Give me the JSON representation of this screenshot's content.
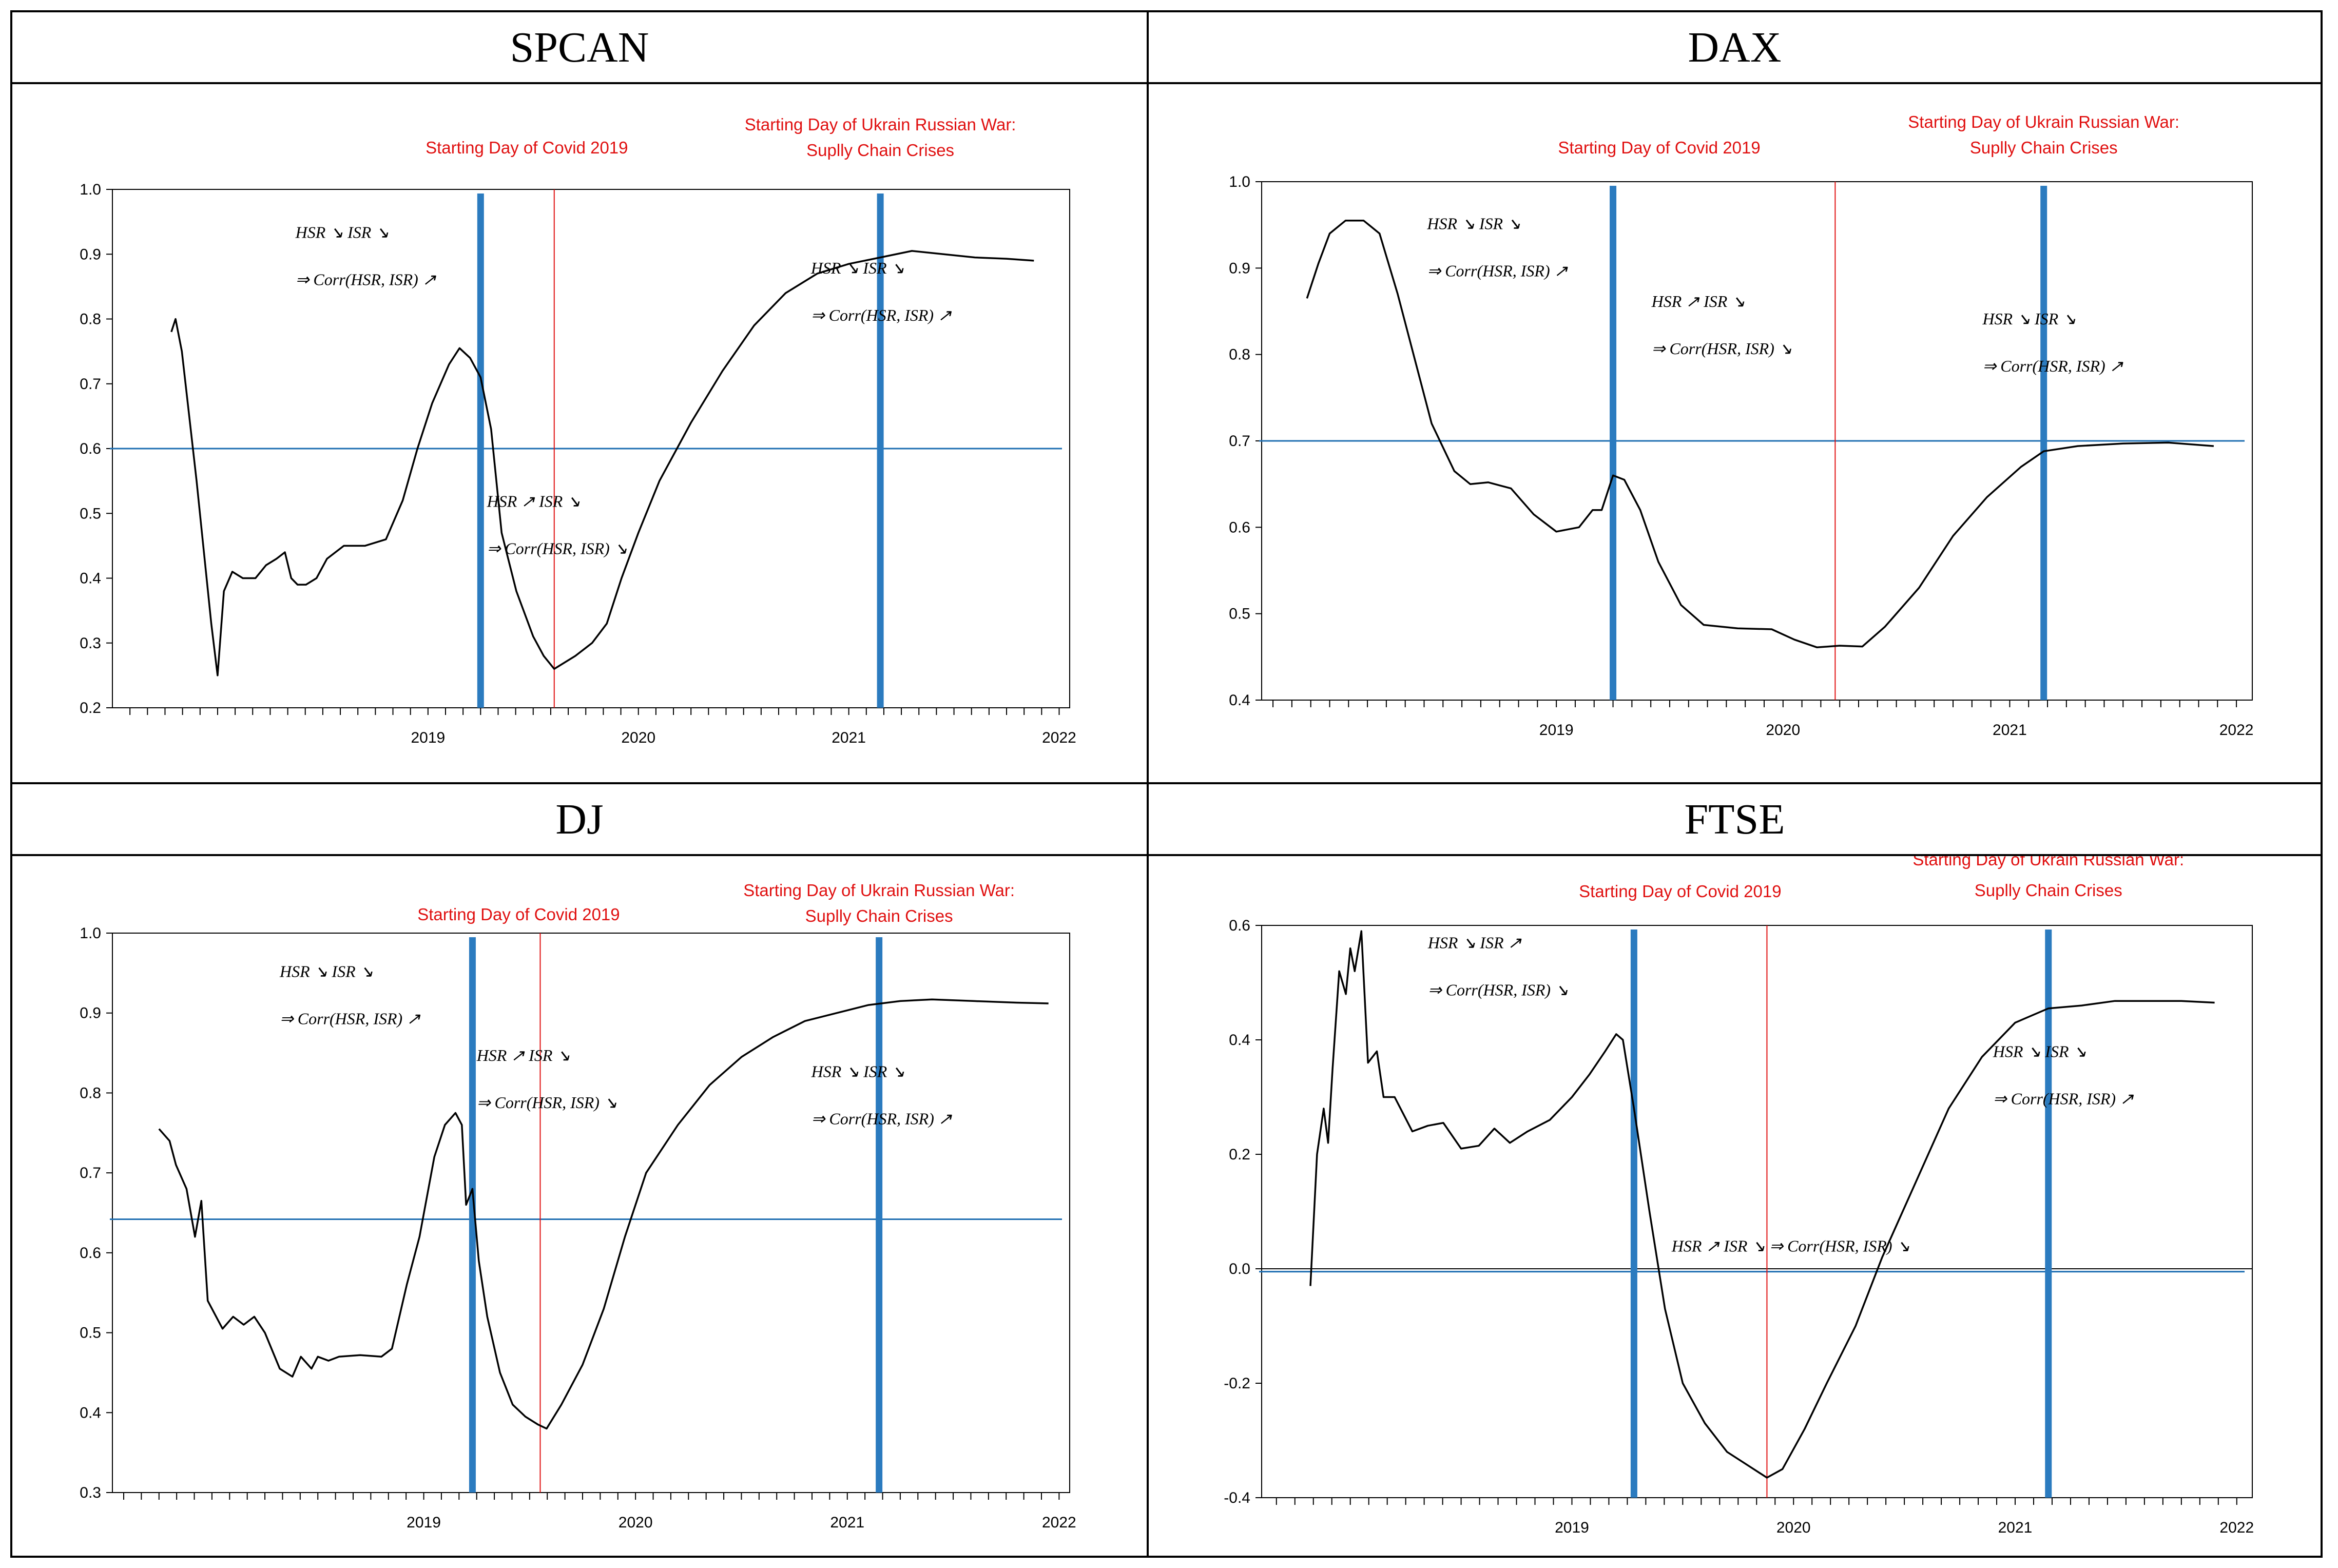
{
  "colors": {
    "curve": "#000000",
    "threshold": "#1f6fb2",
    "event_bar": "#2b7bbf",
    "covid_line": "#e01010",
    "event_text": "#e01010",
    "axis": "#000000"
  },
  "chart_data": [
    {
      "type": "line",
      "title": "SPCAN",
      "x_tick_labels": [
        "2019",
        "2020",
        "2021",
        "2022"
      ],
      "x_ticks": [
        2019.0,
        2020.0,
        2021.0,
        2022.0
      ],
      "xlim": [
        2018.0,
        2022.55
      ],
      "ylim": [
        0.2,
        1.0
      ],
      "y_ticks": [
        0.2,
        0.3,
        0.4,
        0.5,
        0.6,
        0.7,
        0.8,
        0.9,
        1.0
      ],
      "y_tick_labels": [
        "0.2",
        "0.3",
        "0.4",
        "0.5",
        "0.6",
        "0.7",
        "0.8",
        "0.9",
        "1.0"
      ],
      "threshold": 0.6,
      "event_lines": [
        2019.75,
        2021.65
      ],
      "covid_line": 2020.1,
      "events_text": {
        "covid": "Starting Day of Covid 2019",
        "war_line1": "Starting Day of Ukrain Russian War:",
        "war_line2": "Suplly Chain Crises"
      },
      "annotations": [
        {
          "line1": "HSR ↘ ISR ↘",
          "line2": "⇒ Corr(HSR, ISR) ↗",
          "x": 2018.87,
          "y": 0.925
        },
        {
          "line1": "HSR ↗ ISR ↘",
          "line2": "⇒ Corr(HSR, ISR) ↘",
          "x": 2019.78,
          "y": 0.51
        },
        {
          "line1": "HSR ↘ ISR ↘",
          "line2": "⇒ Corr(HSR, ISR) ↗",
          "x": 2021.32,
          "y": 0.87
        }
      ],
      "series": {
        "x": [
          2018.28,
          2018.3,
          2018.33,
          2018.4,
          2018.47,
          2018.5,
          2018.53,
          2018.57,
          2018.62,
          2018.68,
          2018.73,
          2018.78,
          2018.82,
          2018.85,
          2018.88,
          2018.92,
          2018.97,
          2019.02,
          2019.1,
          2019.2,
          2019.3,
          2019.38,
          2019.45,
          2019.52,
          2019.6,
          2019.65,
          2019.7,
          2019.75,
          2019.8,
          2019.85,
          2019.92,
          2020.0,
          2020.05,
          2020.1,
          2020.15,
          2020.2,
          2020.28,
          2020.35,
          2020.42,
          2020.5,
          2020.6,
          2020.75,
          2020.9,
          2021.05,
          2021.2,
          2021.35,
          2021.5,
          2021.65,
          2021.8,
          2021.95,
          2022.1,
          2022.25,
          2022.38
        ],
        "y": [
          0.78,
          0.8,
          0.75,
          0.55,
          0.33,
          0.25,
          0.38,
          0.41,
          0.4,
          0.4,
          0.42,
          0.43,
          0.44,
          0.4,
          0.39,
          0.39,
          0.4,
          0.43,
          0.45,
          0.45,
          0.46,
          0.52,
          0.6,
          0.67,
          0.73,
          0.755,
          0.74,
          0.71,
          0.63,
          0.47,
          0.38,
          0.31,
          0.28,
          0.26,
          0.27,
          0.28,
          0.3,
          0.33,
          0.4,
          0.47,
          0.55,
          0.64,
          0.72,
          0.79,
          0.84,
          0.87,
          0.885,
          0.895,
          0.905,
          0.9,
          0.895,
          0.893,
          0.89
        ]
      }
    },
    {
      "type": "line",
      "title": "DAX",
      "x_tick_labels": [
        "2019",
        "2020",
        "2021",
        "2022"
      ],
      "x_ticks": [
        2019.0,
        2020.0,
        2021.0,
        2022.0
      ],
      "xlim": [
        2018.2,
        2022.57
      ],
      "ylim": [
        0.4,
        1.0
      ],
      "y_ticks": [
        0.4,
        0.5,
        0.6,
        0.7,
        0.8,
        0.9,
        1.0
      ],
      "y_tick_labels": [
        "0.4",
        "0.5",
        "0.6",
        "0.7",
        "0.8",
        "0.9",
        "1.0"
      ],
      "threshold": 0.7,
      "event_lines": [
        2019.75,
        2021.65
      ],
      "covid_line": 2020.73,
      "events_text": {
        "covid": "Starting Day of Covid 2019",
        "war_line1": "Starting Day of Ukrain Russian War:",
        "war_line2": "Suplly Chain Crises"
      },
      "annotations": [
        {
          "line1": "HSR ↘ ISR ↘",
          "line2": "⇒ Corr(HSR, ISR) ↗",
          "x": 2018.93,
          "y": 0.945
        },
        {
          "line1": "HSR ↗ ISR ↘",
          "line2": "⇒ Corr(HSR, ISR) ↘",
          "x": 2019.92,
          "y": 0.855
        },
        {
          "line1": "HSR ↘ ISR ↘",
          "line2": "⇒ Corr(HSR, ISR) ↗",
          "x": 2021.38,
          "y": 0.835
        }
      ],
      "series": {
        "x": [
          2018.4,
          2018.45,
          2018.5,
          2018.57,
          2018.65,
          2018.72,
          2018.8,
          2018.88,
          2018.95,
          2019.05,
          2019.12,
          2019.2,
          2019.3,
          2019.4,
          2019.5,
          2019.6,
          2019.66,
          2019.7,
          2019.75,
          2019.8,
          2019.87,
          2019.95,
          2020.05,
          2020.15,
          2020.3,
          2020.45,
          2020.55,
          2020.65,
          2020.75,
          2020.85,
          2020.95,
          2021.1,
          2021.25,
          2021.4,
          2021.55,
          2021.65,
          2021.8,
          2022.0,
          2022.2,
          2022.4
        ],
        "y": [
          0.865,
          0.905,
          0.94,
          0.955,
          0.955,
          0.94,
          0.87,
          0.79,
          0.72,
          0.665,
          0.65,
          0.652,
          0.645,
          0.615,
          0.595,
          0.6,
          0.62,
          0.62,
          0.66,
          0.655,
          0.62,
          0.56,
          0.51,
          0.487,
          0.483,
          0.482,
          0.47,
          0.461,
          0.463,
          0.462,
          0.485,
          0.53,
          0.59,
          0.635,
          0.67,
          0.688,
          0.694,
          0.697,
          0.698,
          0.694
        ]
      }
    },
    {
      "type": "line",
      "title": "DJ",
      "x_tick_labels": [
        "2019",
        "2020",
        "2021",
        "2022"
      ],
      "x_ticks": [
        2019.0,
        2020.0,
        2021.0,
        2022.0
      ],
      "xlim": [
        2018.03,
        2022.55
      ],
      "ylim": [
        0.3,
        1.0
      ],
      "y_ticks": [
        0.3,
        0.4,
        0.5,
        0.6,
        0.7,
        0.8,
        0.9,
        1.0
      ],
      "y_tick_labels": [
        "0.3",
        "0.4",
        "0.5",
        "0.6",
        "0.7",
        "0.8",
        "0.9",
        "1.0"
      ],
      "threshold": 0.642,
      "event_lines": [
        2019.73,
        2021.65
      ],
      "covid_line": 2020.05,
      "events_text": {
        "covid": "Starting Day of Covid 2019",
        "war_line1": "Starting Day of Ukrain Russian War:",
        "war_line2": "Suplly Chain Crises"
      },
      "annotations": [
        {
          "line1": "HSR ↘ ISR ↘",
          "line2": "⇒ Corr(HSR, ISR) ↗",
          "x": 2018.82,
          "y": 0.945
        },
        {
          "line1": "HSR ↗ ISR ↘",
          "line2": "⇒ Corr(HSR, ISR) ↘",
          "x": 2019.75,
          "y": 0.84
        },
        {
          "line1": "HSR ↘ ISR ↘",
          "line2": "⇒ Corr(HSR, ISR) ↗",
          "x": 2021.33,
          "y": 0.82
        }
      ],
      "series": {
        "x": [
          2018.25,
          2018.3,
          2018.33,
          2018.38,
          2018.42,
          2018.45,
          2018.48,
          2018.52,
          2018.55,
          2018.6,
          2018.65,
          2018.7,
          2018.75,
          2018.82,
          2018.88,
          2018.92,
          2018.97,
          2019.0,
          2019.05,
          2019.1,
          2019.2,
          2019.3,
          2019.35,
          2019.42,
          2019.48,
          2019.55,
          2019.6,
          2019.65,
          2019.68,
          2019.7,
          2019.73,
          2019.76,
          2019.8,
          2019.86,
          2019.92,
          2019.98,
          2020.04,
          2020.08,
          2020.15,
          2020.25,
          2020.35,
          2020.45,
          2020.55,
          2020.7,
          2020.85,
          2021.0,
          2021.15,
          2021.3,
          2021.45,
          2021.6,
          2021.75,
          2021.9,
          2022.1,
          2022.3,
          2022.45
        ],
        "y": [
          0.755,
          0.74,
          0.71,
          0.68,
          0.62,
          0.665,
          0.54,
          0.52,
          0.505,
          0.52,
          0.51,
          0.52,
          0.5,
          0.455,
          0.445,
          0.47,
          0.455,
          0.47,
          0.465,
          0.47,
          0.472,
          0.47,
          0.48,
          0.56,
          0.62,
          0.72,
          0.76,
          0.775,
          0.76,
          0.66,
          0.68,
          0.59,
          0.52,
          0.45,
          0.41,
          0.395,
          0.385,
          0.38,
          0.41,
          0.46,
          0.53,
          0.62,
          0.7,
          0.76,
          0.81,
          0.845,
          0.87,
          0.89,
          0.9,
          0.91,
          0.915,
          0.917,
          0.915,
          0.913,
          0.912
        ]
      }
    },
    {
      "type": "line",
      "title": "FTSE",
      "x_tick_labels": [
        "2019",
        "2020",
        "2021",
        "2022"
      ],
      "x_ticks": [
        2019.0,
        2020.0,
        2021.0,
        2022.0
      ],
      "xlim": [
        2018.1,
        2022.57
      ],
      "ylim": [
        -0.4,
        0.6
      ],
      "y_ticks": [
        -0.4,
        -0.2,
        0.0,
        0.2,
        0.4,
        0.6
      ],
      "y_tick_labels": [
        "-0.4",
        "-0.2",
        "0.0",
        "0.2",
        "0.4",
        "0.6"
      ],
      "threshold": -0.005,
      "zero_line": 0.0,
      "event_lines": [
        2019.78,
        2021.65
      ],
      "covid_line": 2020.38,
      "events_text": {
        "covid": "Starting Day of Covid 2019",
        "war_line1": "Starting Day of Ukrain Russian War:",
        "war_line2": "Suplly Chain Crises"
      },
      "annotations": [
        {
          "line1": "HSR ↘ ISR ↗",
          "line2": "⇒ Corr(HSR, ISR) ↘",
          "x": 2018.85,
          "y": 0.56
        },
        {
          "line1": "HSR ↘ ISR ↘",
          "line2": "⇒ Corr(HSR, ISR) ↗",
          "x": 2021.4,
          "y": 0.37
        },
        {
          "line1": "HSR ↗ ISR ↘   ⇒ Corr(HSR, ISR) ↘",
          "line2": "",
          "x": 2019.95,
          "y": 0.03
        }
      ],
      "series": {
        "x": [
          2018.32,
          2018.35,
          2018.38,
          2018.4,
          2018.42,
          2018.45,
          2018.48,
          2018.5,
          2018.52,
          2018.55,
          2018.58,
          2018.62,
          2018.65,
          2018.7,
          2018.78,
          2018.85,
          2018.92,
          2019.0,
          2019.08,
          2019.15,
          2019.22,
          2019.3,
          2019.4,
          2019.5,
          2019.58,
          2019.65,
          2019.7,
          2019.73,
          2019.78,
          2019.85,
          2019.92,
          2020.0,
          2020.1,
          2020.2,
          2020.3,
          2020.38,
          2020.45,
          2020.55,
          2020.65,
          2020.78,
          2020.9,
          2021.05,
          2021.2,
          2021.35,
          2021.5,
          2021.65,
          2021.8,
          2021.95,
          2022.1,
          2022.25,
          2022.4
        ],
        "y": [
          -0.03,
          0.2,
          0.28,
          0.22,
          0.35,
          0.52,
          0.48,
          0.56,
          0.52,
          0.59,
          0.36,
          0.38,
          0.3,
          0.3,
          0.24,
          0.25,
          0.255,
          0.21,
          0.215,
          0.245,
          0.22,
          0.24,
          0.26,
          0.3,
          0.34,
          0.38,
          0.41,
          0.4,
          0.28,
          0.1,
          -0.07,
          -0.2,
          -0.27,
          -0.32,
          -0.345,
          -0.365,
          -0.35,
          -0.28,
          -0.2,
          -0.1,
          0.02,
          0.15,
          0.28,
          0.37,
          0.43,
          0.455,
          0.46,
          0.468,
          0.468,
          0.468,
          0.465
        ]
      }
    }
  ]
}
